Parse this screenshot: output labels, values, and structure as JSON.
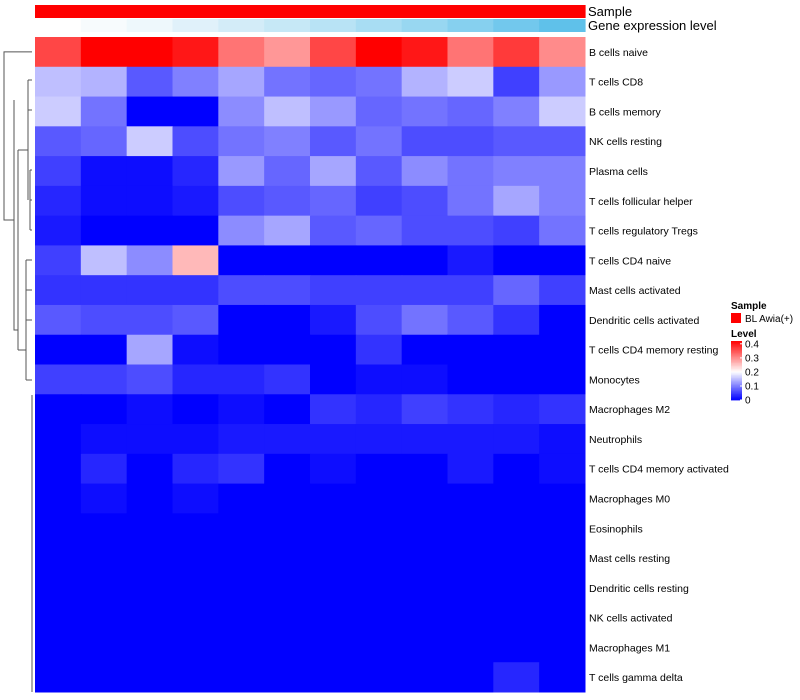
{
  "chart_data": {
    "type": "heatmap",
    "title": "",
    "annotations": [
      {
        "label": "Sample",
        "colors": [
          "#ff0000"
        ]
      },
      {
        "label": "Gene expression level",
        "colors": [
          "#ffffff",
          "#f7fbfd",
          "#eef8fc",
          "#e0f1fa",
          "#d3ecf8",
          "#c6e8f6",
          "#b8e3f5",
          "#a8ddf3",
          "#98d7f1",
          "#86d0ef",
          "#72c8ed",
          "#5fc1ea"
        ]
      }
    ],
    "rows": [
      "B cells naive",
      "T cells CD8",
      "B cells memory",
      "NK cells resting",
      "Plasma cells",
      "T cells follicular helper",
      "T cells regulatory  Tregs",
      "T cells CD4 naive",
      "Mast cells activated",
      "Dendritic cells activated",
      "T cells CD4 memory resting",
      "Monocytes",
      "Macrophages M2",
      "Neutrophils",
      "T cells CD4 memory activated",
      "Macrophages M0",
      "Eosinophils",
      "Mast cells resting",
      "Dendritic cells resting",
      "NK cells activated",
      "Macrophages M1",
      "T cells gamma delta"
    ],
    "n_columns": 12,
    "values": [
      [
        0.36,
        0.42,
        0.42,
        0.4,
        0.32,
        0.29,
        0.36,
        0.42,
        0.4,
        0.32,
        0.37,
        0.3
      ],
      [
        0.15,
        0.14,
        0.07,
        0.1,
        0.13,
        0.09,
        0.08,
        0.09,
        0.14,
        0.16,
        0.05,
        0.12
      ],
      [
        0.16,
        0.09,
        0.0,
        0.0,
        0.11,
        0.15,
        0.12,
        0.08,
        0.09,
        0.08,
        0.1,
        0.16
      ],
      [
        0.07,
        0.08,
        0.16,
        0.06,
        0.09,
        0.1,
        0.07,
        0.09,
        0.06,
        0.06,
        0.07,
        0.07
      ],
      [
        0.05,
        0.01,
        0.01,
        0.03,
        0.12,
        0.08,
        0.13,
        0.07,
        0.11,
        0.09,
        0.1,
        0.1
      ],
      [
        0.03,
        0.01,
        0.01,
        0.02,
        0.06,
        0.07,
        0.08,
        0.05,
        0.06,
        0.09,
        0.13,
        0.1
      ],
      [
        0.02,
        0.0,
        0.0,
        0.0,
        0.11,
        0.13,
        0.07,
        0.08,
        0.06,
        0.06,
        0.05,
        0.09
      ],
      [
        0.05,
        0.15,
        0.11,
        0.26,
        0.0,
        0.0,
        0.0,
        0.0,
        0.0,
        0.02,
        0.0,
        0.0
      ],
      [
        0.04,
        0.04,
        0.04,
        0.04,
        0.06,
        0.06,
        0.05,
        0.05,
        0.05,
        0.05,
        0.08,
        0.05
      ],
      [
        0.07,
        0.06,
        0.06,
        0.07,
        0.0,
        0.0,
        0.02,
        0.06,
        0.09,
        0.07,
        0.04,
        0.0
      ],
      [
        0.0,
        0.0,
        0.13,
        0.01,
        0.0,
        0.0,
        0.0,
        0.04,
        0.0,
        0.0,
        0.0,
        0.0
      ],
      [
        0.05,
        0.05,
        0.06,
        0.03,
        0.03,
        0.04,
        0.0,
        0.01,
        0.01,
        0.0,
        0.0,
        0.0
      ],
      [
        0.0,
        0.0,
        0.01,
        0.0,
        0.01,
        0.0,
        0.04,
        0.03,
        0.05,
        0.04,
        0.03,
        0.04
      ],
      [
        0.0,
        0.01,
        0.01,
        0.01,
        0.02,
        0.02,
        0.02,
        0.02,
        0.02,
        0.02,
        0.02,
        0.01
      ],
      [
        0.0,
        0.03,
        0.0,
        0.03,
        0.04,
        0.0,
        0.01,
        0.0,
        0.0,
        0.02,
        0.0,
        0.01
      ],
      [
        0.0,
        0.01,
        0.0,
        0.01,
        0.0,
        0.0,
        0.0,
        0.0,
        0.0,
        0.0,
        0.0,
        0.0
      ],
      [
        0.0,
        0.0,
        0.0,
        0.0,
        0.0,
        0.0,
        0.0,
        0.0,
        0.0,
        0.0,
        0.0,
        0.0
      ],
      [
        0.0,
        0.0,
        0.0,
        0.0,
        0.0,
        0.0,
        0.0,
        0.0,
        0.0,
        0.0,
        0.0,
        0.0
      ],
      [
        0.0,
        0.0,
        0.0,
        0.0,
        0.0,
        0.0,
        0.0,
        0.0,
        0.0,
        0.0,
        0.0,
        0.0
      ],
      [
        0.0,
        0.0,
        0.0,
        0.0,
        0.0,
        0.0,
        0.0,
        0.0,
        0.0,
        0.0,
        0.0,
        0.0
      ],
      [
        0.0,
        0.0,
        0.0,
        0.0,
        0.0,
        0.0,
        0.0,
        0.0,
        0.0,
        0.0,
        0.0,
        0.0
      ],
      [
        0.0,
        0.0,
        0.0,
        0.0,
        0.0,
        0.0,
        0.0,
        0.0,
        0.0,
        0.0,
        0.03,
        0.0
      ]
    ],
    "color_scale": {
      "min": 0,
      "max": 0.42,
      "low": "#0000ff",
      "mid": "#ffffff",
      "mid_value": 0.2,
      "high": "#ff0000"
    },
    "legend": {
      "sample_title": "Sample",
      "sample_entry": "BL Awia(+)",
      "sample_color": "#ff0000",
      "level_title": "Level",
      "level_ticks": [
        0,
        0.1,
        0.2,
        0.3,
        0.4
      ],
      "level_tick_labels": [
        "0",
        "0.1",
        "0.2",
        "0.3",
        "0.4"
      ],
      "placement": "right"
    }
  }
}
